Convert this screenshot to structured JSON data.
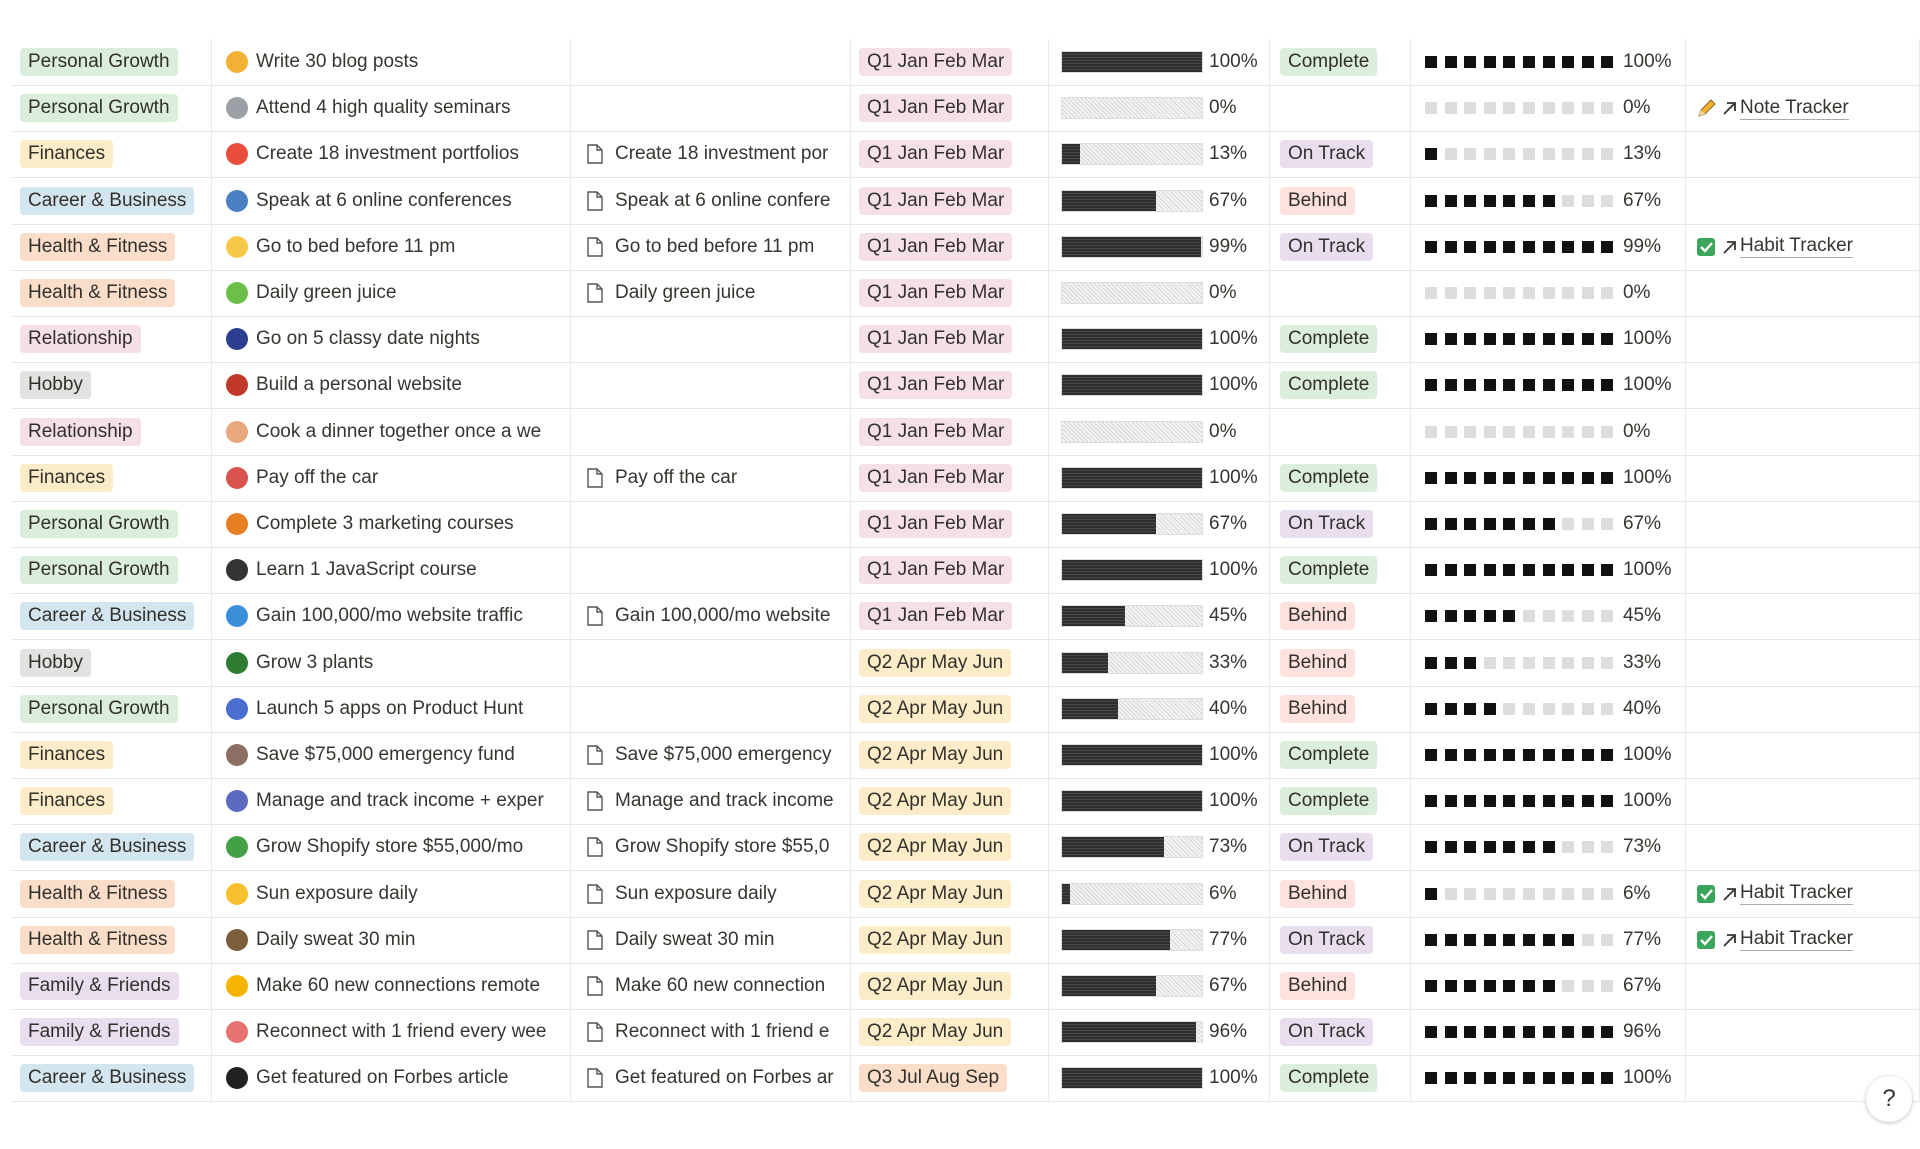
{
  "table": {
    "tag_colors": {
      "Personal Growth": "#dbeddb",
      "Finances": "#fdecc8",
      "Career & Business": "#d3e5ef",
      "Health & Fitness": "#fadec9",
      "Relationship": "#f5e0e9",
      "Hobby": "#e3e2e0",
      "Family & Friends": "#e8deee",
      "Q1 Jan Feb Mar": "#f5e0e9",
      "Q2 Apr May Jun": "#fdecc8",
      "Q3 Jul Aug Sep": "#fadec9",
      "Complete": "#dbeddb",
      "On Track": "#e8deee",
      "Behind": "#ffe2dd"
    },
    "rows": [
      {
        "category": "Personal Growth",
        "goal": "Write 30 blog posts",
        "doc": null,
        "quarter": "Q1 Jan Feb Mar",
        "progress": {
          "value": 100,
          "label": "100%"
        },
        "status": "Complete",
        "link": null
      },
      {
        "category": "Personal Growth",
        "goal": "Attend 4 high quality seminars",
        "doc": null,
        "quarter": "Q1 Jan Feb Mar",
        "progress": {
          "value": 0,
          "label": "0%"
        },
        "status": null,
        "link": {
          "text": "Note Tracker",
          "icon": "pencil"
        }
      },
      {
        "category": "Finances",
        "goal": "Create 18 investment portfolios",
        "doc": "Create 18 investment por",
        "quarter": "Q1 Jan Feb Mar",
        "progress": {
          "value": 13,
          "label": "13%"
        },
        "status": "On Track",
        "link": null
      },
      {
        "category": "Career & Business",
        "goal": "Speak at 6 online conferences",
        "doc": "Speak at 6 online confere",
        "quarter": "Q1 Jan Feb Mar",
        "progress": {
          "value": 67,
          "label": "67%"
        },
        "status": "Behind",
        "link": null
      },
      {
        "category": "Health & Fitness",
        "goal": "Go to bed before 11 pm",
        "doc": "Go to bed before 11 pm",
        "quarter": "Q1 Jan Feb Mar",
        "progress": {
          "value": 99,
          "label": "99%"
        },
        "status": "On Track",
        "link": {
          "text": "Habit Tracker",
          "icon": "check"
        }
      },
      {
        "category": "Health & Fitness",
        "goal": "Daily green juice",
        "doc": "Daily green juice",
        "quarter": "Q1 Jan Feb Mar",
        "progress": {
          "value": 0,
          "label": "0%"
        },
        "status": null,
        "link": null
      },
      {
        "category": "Relationship",
        "goal": "Go on 5 classy date nights",
        "doc": null,
        "quarter": "Q1 Jan Feb Mar",
        "progress": {
          "value": 100,
          "label": "100%"
        },
        "status": "Complete",
        "link": null
      },
      {
        "category": "Hobby",
        "goal": "Build a personal website",
        "doc": null,
        "quarter": "Q1 Jan Feb Mar",
        "progress": {
          "value": 100,
          "label": "100%"
        },
        "status": "Complete",
        "link": null
      },
      {
        "category": "Relationship",
        "goal": "Cook a dinner together once a we",
        "doc": null,
        "quarter": "Q1 Jan Feb Mar",
        "progress": {
          "value": 0,
          "label": "0%"
        },
        "status": null,
        "link": null
      },
      {
        "category": "Finances",
        "goal": "Pay off the car",
        "doc": "Pay off the car",
        "quarter": "Q1 Jan Feb Mar",
        "progress": {
          "value": 100,
          "label": "100%"
        },
        "status": "Complete",
        "link": null
      },
      {
        "category": "Personal Growth",
        "goal": "Complete 3 marketing courses",
        "doc": null,
        "quarter": "Q1 Jan Feb Mar",
        "progress": {
          "value": 67,
          "label": "67%"
        },
        "status": "On Track",
        "link": null
      },
      {
        "category": "Personal Growth",
        "goal": "Learn 1 JavaScript course",
        "doc": null,
        "quarter": "Q1 Jan Feb Mar",
        "progress": {
          "value": 100,
          "label": "100%"
        },
        "status": "Complete",
        "link": null
      },
      {
        "category": "Career & Business",
        "goal": "Gain 100,000/mo website traffic",
        "doc": "Gain 100,000/mo website",
        "quarter": "Q1 Jan Feb Mar",
        "progress": {
          "value": 45,
          "label": "45%"
        },
        "status": "Behind",
        "link": null
      },
      {
        "category": "Hobby",
        "goal": "Grow 3 plants",
        "doc": null,
        "quarter": "Q2 Apr May Jun",
        "progress": {
          "value": 33,
          "label": "33%"
        },
        "status": "Behind",
        "link": null
      },
      {
        "category": "Personal Growth",
        "goal": "Launch 5 apps on Product Hunt",
        "doc": null,
        "quarter": "Q2 Apr May Jun",
        "progress": {
          "value": 40,
          "label": "40%"
        },
        "status": "Behind",
        "link": null
      },
      {
        "category": "Finances",
        "goal": "Save $75,000 emergency fund",
        "doc": "Save $75,000 emergency",
        "quarter": "Q2 Apr May Jun",
        "progress": {
          "value": 100,
          "label": "100%"
        },
        "status": "Complete",
        "link": null
      },
      {
        "category": "Finances",
        "goal": "Manage and track income + exper",
        "doc": "Manage and track income",
        "quarter": "Q2 Apr May Jun",
        "progress": {
          "value": 100,
          "label": "100%"
        },
        "status": "Complete",
        "link": null
      },
      {
        "category": "Career & Business",
        "goal": "Grow Shopify store $55,000/mo",
        "doc": "Grow Shopify store $55,0",
        "quarter": "Q2 Apr May Jun",
        "progress": {
          "value": 73,
          "label": "73%"
        },
        "status": "On Track",
        "link": null
      },
      {
        "category": "Health & Fitness",
        "goal": "Sun exposure daily",
        "doc": "Sun exposure daily",
        "quarter": "Q2 Apr May Jun",
        "progress": {
          "value": 6,
          "label": "6%"
        },
        "status": "Behind",
        "link": {
          "text": "Habit Tracker",
          "icon": "check"
        }
      },
      {
        "category": "Health & Fitness",
        "goal": "Daily sweat 30 min",
        "doc": "Daily sweat 30 min",
        "quarter": "Q2 Apr May Jun",
        "progress": {
          "value": 77,
          "label": "77%"
        },
        "status": "On Track",
        "link": {
          "text": "Habit Tracker",
          "icon": "check"
        }
      },
      {
        "category": "Family & Friends",
        "goal": "Make 60 new connections remote",
        "doc": "Make 60 new connection",
        "quarter": "Q2 Apr May Jun",
        "progress": {
          "value": 67,
          "label": "67%"
        },
        "status": "Behind",
        "link": null
      },
      {
        "category": "Family & Friends",
        "goal": "Reconnect with 1 friend every wee",
        "doc": "Reconnect with 1 friend e",
        "quarter": "Q2 Apr May Jun",
        "progress": {
          "value": 96,
          "label": "96%"
        },
        "status": "On Track",
        "link": null
      },
      {
        "category": "Career & Business",
        "goal": "Get featured on Forbes article",
        "doc": "Get featured on Forbes ar",
        "quarter": "Q3 Jul Aug Sep",
        "progress": {
          "value": 100,
          "label": "100%"
        },
        "status": "Complete",
        "link": null
      }
    ],
    "help_button": "?"
  }
}
